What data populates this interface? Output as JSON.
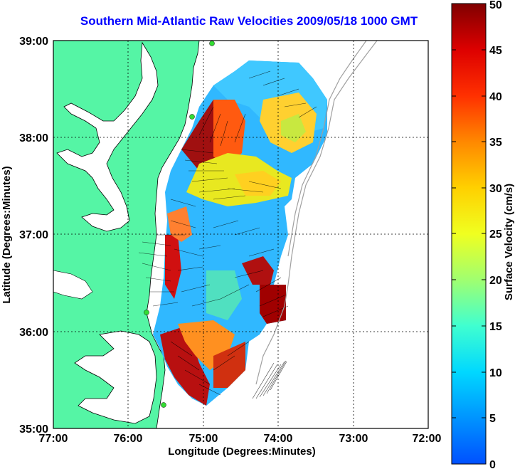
{
  "title": "Southern Mid-Atlantic Raw Velocities 2009/05/18 1000 GMT",
  "xlabel": "Longitude (Degrees:Minutes)",
  "ylabel": "Latitude (Degrees:Minutes)",
  "x_ticks": [
    "77:00",
    "76:00",
    "75:00",
    "74:00",
    "73:00",
    "72:00"
  ],
  "y_ticks": [
    "39:00",
    "38:00",
    "37:00",
    "36:00",
    "35:00"
  ],
  "colorbar": {
    "label": "Surface Velocity (cm/s)",
    "ticks": [
      "0",
      "5",
      "10",
      "15",
      "20",
      "25",
      "30",
      "35",
      "40",
      "45",
      "50"
    ],
    "min": 0,
    "max": 50
  },
  "colors": {
    "land": "#55f5a5",
    "title": "#0000ff",
    "station": "#33dd33"
  }
}
